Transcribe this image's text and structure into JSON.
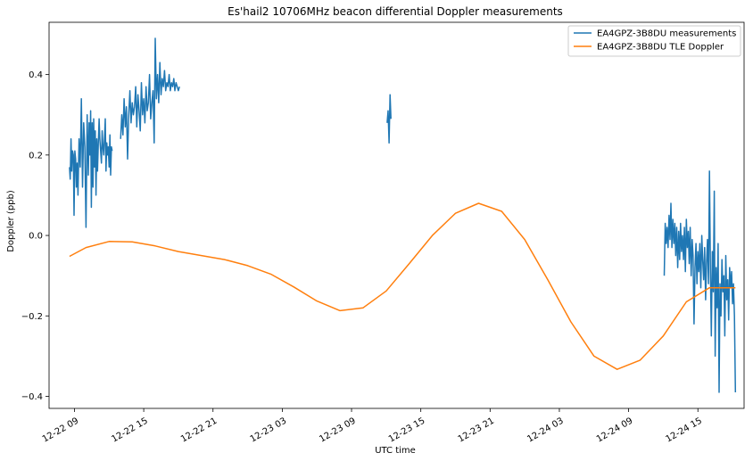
{
  "chart_data": {
    "type": "line",
    "title": "Es'hail2 10706MHz beacon differential Doppler measurements",
    "xlabel": "UTC time",
    "ylabel": "Doppler (ppb)",
    "xlim": [
      "2018-12-22 06:48",
      "2018-12-24 19:00"
    ],
    "ylim": [
      -0.43,
      0.53
    ],
    "x_ticks": [
      "12-22 09",
      "12-22 15",
      "12-22 21",
      "12-23 03",
      "12-23 09",
      "12-23 15",
      "12-23 21",
      "12-24 03",
      "12-24 09",
      "12-24 15"
    ],
    "y_ticks": [
      -0.4,
      -0.2,
      0.0,
      0.2,
      0.4
    ],
    "y_tick_labels": [
      "−0.4",
      "−0.2",
      "0.0",
      "0.2",
      "0.4"
    ],
    "grid": false,
    "legend_position": "top-right",
    "series": [
      {
        "name": "EA4GPZ-3B8DU measurements",
        "color": "#1f77b4",
        "segments": [
          {
            "x": [
              "2018-12-22 08:34",
              "2018-12-22 08:38",
              "2018-12-22 08:42",
              "2018-12-22 08:46",
              "2018-12-22 08:50",
              "2018-12-22 08:54",
              "2018-12-22 08:58",
              "2018-12-22 09:02",
              "2018-12-22 09:06",
              "2018-12-22 09:10",
              "2018-12-22 09:14",
              "2018-12-22 09:18",
              "2018-12-22 09:24",
              "2018-12-22 09:30",
              "2018-12-22 09:36",
              "2018-12-22 09:42",
              "2018-12-22 09:48",
              "2018-12-22 09:54",
              "2018-12-22 10:00",
              "2018-12-22 10:06",
              "2018-12-22 10:12",
              "2018-12-22 10:16",
              "2018-12-22 10:20",
              "2018-12-22 10:24",
              "2018-12-22 10:28",
              "2018-12-22 10:32",
              "2018-12-22 10:36",
              "2018-12-22 10:40",
              "2018-12-22 10:44",
              "2018-12-22 10:48",
              "2018-12-22 10:52",
              "2018-12-22 10:56",
              "2018-12-22 11:00",
              "2018-12-22 11:04",
              "2018-12-22 11:08",
              "2018-12-22 11:12",
              "2018-12-22 11:16",
              "2018-12-22 11:20",
              "2018-12-22 11:24",
              "2018-12-22 11:28",
              "2018-12-22 11:32",
              "2018-12-22 11:36",
              "2018-12-22 11:40",
              "2018-12-22 11:44",
              "2018-12-22 11:48",
              "2018-12-22 11:52",
              "2018-12-22 11:56",
              "2018-12-22 12:00",
              "2018-12-22 12:04",
              "2018-12-22 12:08",
              "2018-12-22 12:12",
              "2018-12-22 12:16"
            ],
            "y": [
              0.17,
              0.14,
              0.24,
              0.16,
              0.21,
              0.2,
              0.05,
              0.21,
              0.19,
              0.12,
              0.18,
              0.1,
              0.24,
              0.17,
              0.34,
              0.12,
              0.28,
              0.22,
              0.02,
              0.3,
              0.15,
              0.28,
              0.2,
              0.31,
              0.07,
              0.28,
              0.12,
              0.29,
              0.17,
              0.26,
              0.1,
              0.24,
              0.16,
              0.23,
              0.29,
              0.24,
              0.21,
              0.18,
              0.26,
              0.22,
              0.2,
              0.24,
              0.29,
              0.16,
              0.23,
              0.2,
              0.22,
              0.17,
              0.25,
              0.15,
              0.22,
              0.21
            ]
          },
          {
            "x": [
              "2018-12-22 13:00",
              "2018-12-22 13:06",
              "2018-12-22 13:12",
              "2018-12-22 13:18",
              "2018-12-22 13:24",
              "2018-12-22 13:30",
              "2018-12-22 13:36",
              "2018-12-22 13:42",
              "2018-12-22 13:48",
              "2018-12-22 13:54",
              "2018-12-22 14:00",
              "2018-12-22 14:06",
              "2018-12-22 14:12",
              "2018-12-22 14:18",
              "2018-12-22 14:24",
              "2018-12-22 14:30",
              "2018-12-22 14:36",
              "2018-12-22 14:42",
              "2018-12-22 14:48",
              "2018-12-22 14:54",
              "2018-12-22 15:00",
              "2018-12-22 15:06",
              "2018-12-22 15:12",
              "2018-12-22 15:18",
              "2018-12-22 15:24",
              "2018-12-22 15:30",
              "2018-12-22 15:36",
              "2018-12-22 15:42",
              "2018-12-22 15:48",
              "2018-12-22 15:54",
              "2018-12-22 16:00",
              "2018-12-22 16:06",
              "2018-12-22 16:12",
              "2018-12-22 16:18",
              "2018-12-22 16:24",
              "2018-12-22 16:30",
              "2018-12-22 16:36",
              "2018-12-22 16:42",
              "2018-12-22 16:48",
              "2018-12-22 16:54",
              "2018-12-22 17:00",
              "2018-12-22 17:06",
              "2018-12-22 17:12",
              "2018-12-22 17:18",
              "2018-12-22 17:24",
              "2018-12-22 17:30",
              "2018-12-22 17:36",
              "2018-12-22 17:42",
              "2018-12-22 17:48",
              "2018-12-22 17:54",
              "2018-12-22 18:00",
              "2018-12-22 18:06"
            ],
            "y": [
              0.24,
              0.3,
              0.25,
              0.34,
              0.27,
              0.32,
              0.19,
              0.3,
              0.36,
              0.28,
              0.33,
              0.3,
              0.32,
              0.37,
              0.27,
              0.35,
              0.31,
              0.26,
              0.38,
              0.3,
              0.34,
              0.28,
              0.37,
              0.31,
              0.33,
              0.4,
              0.29,
              0.33,
              0.36,
              0.23,
              0.49,
              0.34,
              0.4,
              0.33,
              0.43,
              0.35,
              0.39,
              0.37,
              0.41,
              0.36,
              0.38,
              0.37,
              0.4,
              0.36,
              0.38,
              0.37,
              0.39,
              0.36,
              0.38,
              0.37,
              0.36,
              0.37
            ]
          },
          {
            "x": [
              "2018-12-23 12:05",
              "2018-12-23 12:10",
              "2018-12-23 12:15",
              "2018-12-23 12:20",
              "2018-12-23 12:25"
            ],
            "y": [
              0.28,
              0.31,
              0.23,
              0.35,
              0.29
            ]
          },
          {
            "x": [
              "2018-12-24 12:05",
              "2018-12-24 12:10",
              "2018-12-24 12:15",
              "2018-12-24 12:20",
              "2018-12-24 12:25",
              "2018-12-24 12:30",
              "2018-12-24 12:35",
              "2018-12-24 12:40",
              "2018-12-24 12:45",
              "2018-12-24 12:50",
              "2018-12-24 12:55",
              "2018-12-24 13:00",
              "2018-12-24 13:05",
              "2018-12-24 13:10",
              "2018-12-24 13:15",
              "2018-12-24 13:20",
              "2018-12-24 13:25",
              "2018-12-24 13:30",
              "2018-12-24 13:35",
              "2018-12-24 13:40",
              "2018-12-24 13:45",
              "2018-12-24 13:50",
              "2018-12-24 13:55",
              "2018-12-24 14:00",
              "2018-12-24 14:05",
              "2018-12-24 14:10",
              "2018-12-24 14:15",
              "2018-12-24 14:20",
              "2018-12-24 14:25",
              "2018-12-24 14:30",
              "2018-12-24 14:35",
              "2018-12-24 14:40",
              "2018-12-24 14:45",
              "2018-12-24 14:50",
              "2018-12-24 14:55",
              "2018-12-24 15:00",
              "2018-12-24 15:05",
              "2018-12-24 15:10",
              "2018-12-24 15:15",
              "2018-12-24 15:20",
              "2018-12-24 15:25",
              "2018-12-24 15:30",
              "2018-12-24 15:35",
              "2018-12-24 15:40",
              "2018-12-24 15:45",
              "2018-12-24 15:50",
              "2018-12-24 15:55",
              "2018-12-24 16:00",
              "2018-12-24 16:05",
              "2018-12-24 16:10",
              "2018-12-24 16:15",
              "2018-12-24 16:20",
              "2018-12-24 16:25",
              "2018-12-24 16:30",
              "2018-12-24 16:35",
              "2018-12-24 16:40",
              "2018-12-24 16:45",
              "2018-12-24 16:50",
              "2018-12-24 16:55",
              "2018-12-24 17:00",
              "2018-12-24 17:05",
              "2018-12-24 17:10",
              "2018-12-24 17:15",
              "2018-12-24 17:20",
              "2018-12-24 17:25",
              "2018-12-24 17:30",
              "2018-12-24 17:35",
              "2018-12-24 17:40",
              "2018-12-24 17:45",
              "2018-12-24 17:50",
              "2018-12-24 17:55",
              "2018-12-24 18:00",
              "2018-12-24 18:05",
              "2018-12-24 18:10",
              "2018-12-24 18:15"
            ],
            "y": [
              -0.1,
              0.03,
              -0.02,
              0.02,
              -0.03,
              0.05,
              -0.01,
              0.08,
              -0.03,
              0.04,
              -0.02,
              0.03,
              -0.05,
              0.02,
              -0.08,
              0.01,
              -0.06,
              0.03,
              -0.04,
              0.0,
              -0.06,
              0.02,
              -0.09,
              0.04,
              -0.03,
              0.01,
              -0.07,
              0.02,
              -0.1,
              -0.01,
              -0.05,
              -0.22,
              -0.08,
              -0.02,
              -0.12,
              -0.04,
              -0.09,
              -0.02,
              -0.13,
              0.0,
              -0.06,
              -0.11,
              -0.03,
              -0.16,
              -0.07,
              -0.01,
              -0.12,
              0.16,
              -0.09,
              -0.25,
              -0.04,
              -0.14,
              0.11,
              -0.3,
              -0.08,
              -0.18,
              -0.02,
              -0.39,
              -0.12,
              -0.2,
              -0.06,
              -0.14,
              -0.1,
              -0.25,
              -0.05,
              -0.16,
              -0.11,
              -0.21,
              -0.08,
              -0.13,
              -0.09,
              -0.17,
              -0.12,
              -0.2,
              -0.39
            ]
          }
        ]
      },
      {
        "name": "EA4GPZ-3B8DU TLE Doppler",
        "color": "#ff7f0e",
        "x": [
          "2018-12-22 08:34",
          "2018-12-22 10:00",
          "2018-12-22 12:00",
          "2018-12-22 14:00",
          "2018-12-22 16:00",
          "2018-12-22 18:00",
          "2018-12-22 20:00",
          "2018-12-22 22:00",
          "2018-12-23 00:00",
          "2018-12-23 02:00",
          "2018-12-23 04:00",
          "2018-12-23 06:00",
          "2018-12-23 08:00",
          "2018-12-23 10:00",
          "2018-12-23 12:00",
          "2018-12-23 14:00",
          "2018-12-23 16:00",
          "2018-12-23 18:00",
          "2018-12-23 20:00",
          "2018-12-23 22:00",
          "2018-12-24 00:00",
          "2018-12-24 02:00",
          "2018-12-24 04:00",
          "2018-12-24 06:00",
          "2018-12-24 08:00",
          "2018-12-24 10:00",
          "2018-12-24 12:00",
          "2018-12-24 14:00",
          "2018-12-24 16:00",
          "2018-12-24 18:15"
        ],
        "y": [
          -0.052,
          -0.03,
          -0.015,
          -0.016,
          -0.026,
          -0.04,
          -0.05,
          -0.06,
          -0.075,
          -0.096,
          -0.128,
          -0.163,
          -0.187,
          -0.18,
          -0.138,
          -0.07,
          0.0,
          0.055,
          0.08,
          0.06,
          -0.01,
          -0.11,
          -0.215,
          -0.3,
          -0.333,
          -0.31,
          -0.25,
          -0.165,
          -0.13,
          -0.13
        ]
      }
    ]
  }
}
